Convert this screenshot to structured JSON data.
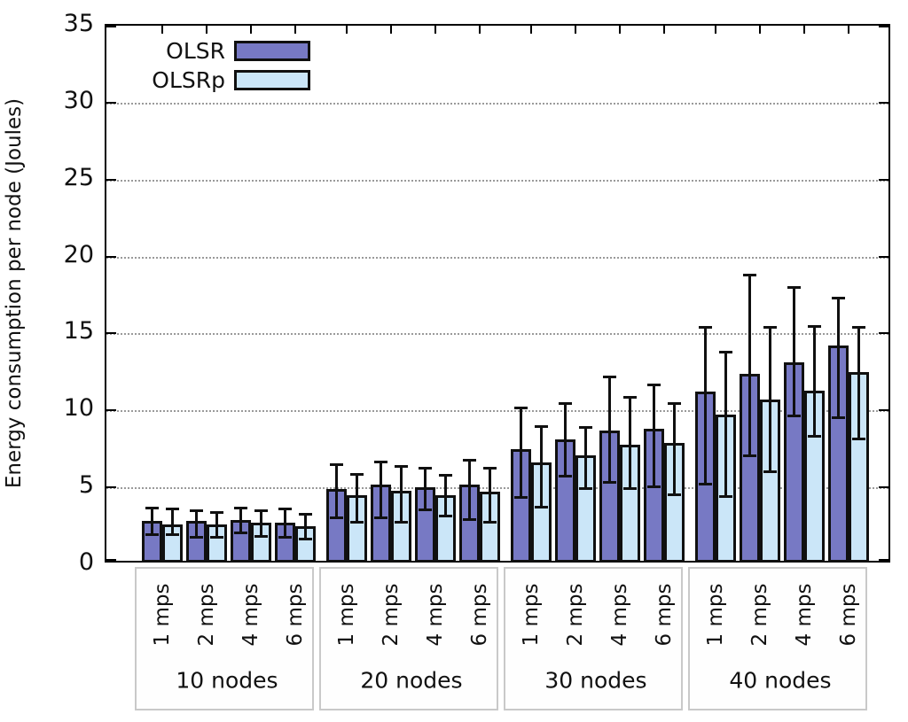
{
  "chart_data": {
    "type": "bar",
    "title": "",
    "xlabel": "",
    "ylabel": "Energy consumption per node (Joules)",
    "ylim": [
      0,
      35
    ],
    "yticks": [
      0,
      5,
      10,
      15,
      20,
      25,
      30,
      35
    ],
    "grid_yticks": [
      5,
      10,
      15,
      20,
      25,
      30
    ],
    "grid": true,
    "legend_position": "top-left",
    "groups": [
      {
        "label": "10 nodes",
        "categories": [
          "1 mps",
          "2 mps",
          "4 mps",
          "6 mps"
        ]
      },
      {
        "label": "20 nodes",
        "categories": [
          "1 mps",
          "2 mps",
          "4 mps",
          "6 mps"
        ]
      },
      {
        "label": "30 nodes",
        "categories": [
          "1 mps",
          "2 mps",
          "4 mps",
          "6 mps"
        ]
      },
      {
        "label": "40 nodes",
        "categories": [
          "1 mps",
          "2 mps",
          "4 mps",
          "6 mps"
        ]
      }
    ],
    "series": [
      {
        "name": "OLSR",
        "color": "#7779c4",
        "values": [
          [
            2.8,
            2.8,
            2.9,
            2.7
          ],
          [
            4.9,
            5.2,
            5.0,
            5.2
          ],
          [
            7.5,
            8.1,
            8.7,
            8.8
          ],
          [
            11.2,
            12.4,
            13.1,
            14.2
          ]
        ],
        "err_high": [
          [
            3.7,
            3.5,
            3.7,
            3.6
          ],
          [
            6.5,
            6.7,
            6.3,
            6.8
          ],
          [
            10.2,
            10.5,
            12.2,
            11.7
          ],
          [
            15.4,
            18.8,
            18.0,
            17.3
          ]
        ],
        "err_low": [
          [
            1.9,
            1.7,
            2.0,
            1.7
          ],
          [
            3.0,
            3.0,
            3.5,
            2.9
          ],
          [
            4.3,
            5.7,
            5.3,
            5.0
          ],
          [
            5.2,
            7.0,
            9.6,
            9.5
          ]
        ]
      },
      {
        "name": "OLSRp",
        "color": "#cbe6f8",
        "values": [
          [
            2.6,
            2.6,
            2.7,
            2.5
          ],
          [
            4.5,
            4.8,
            4.5,
            4.7
          ],
          [
            6.6,
            7.1,
            7.8,
            7.9
          ],
          [
            9.7,
            10.7,
            11.3,
            12.5
          ]
        ],
        "err_high": [
          [
            3.6,
            3.4,
            3.5,
            3.3
          ],
          [
            5.9,
            6.4,
            5.8,
            6.3
          ],
          [
            9.0,
            8.9,
            10.9,
            10.5
          ],
          [
            13.8,
            15.4,
            15.5,
            15.4
          ]
        ],
        "err_low": [
          [
            1.9,
            1.7,
            1.8,
            1.6
          ],
          [
            2.7,
            2.7,
            3.1,
            2.7
          ],
          [
            3.7,
            4.9,
            4.9,
            4.5
          ],
          [
            4.4,
            6.0,
            8.3,
            8.1
          ]
        ]
      }
    ],
    "colors": {
      "axis": "#000000",
      "grid": "#9a9a9a",
      "bar_border": "#101010",
      "box_border": "#c9c9c9"
    }
  }
}
